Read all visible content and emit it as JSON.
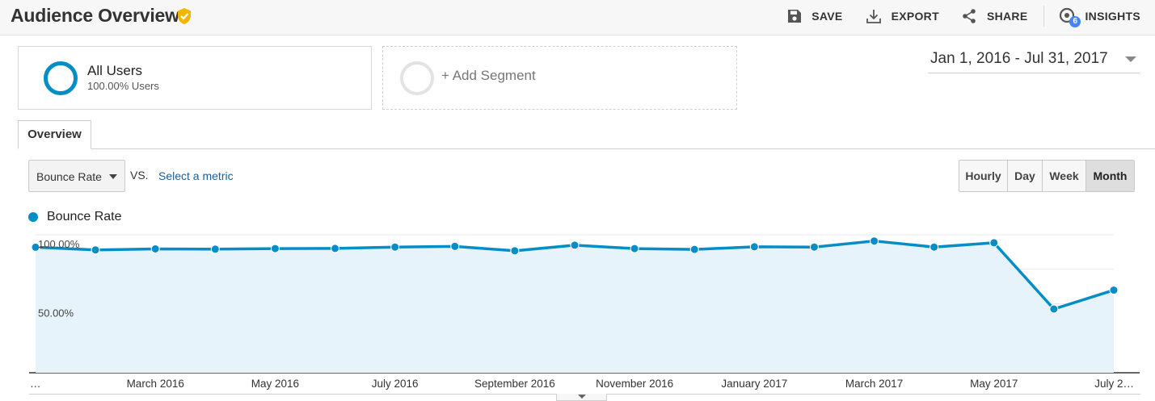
{
  "header": {
    "title": "Audience Overview",
    "actions": {
      "save": "SAVE",
      "export": "EXPORT",
      "share": "SHARE",
      "insights": "INSIGHTS",
      "insights_badge": "6"
    }
  },
  "segments": {
    "all_users": {
      "name": "All Users",
      "subtitle": "100.00% Users"
    },
    "add_segment": "+ Add Segment"
  },
  "date_range": "Jan 1, 2016 - Jul 31, 2017",
  "tabs": {
    "overview": "Overview"
  },
  "controls": {
    "metric": "Bounce Rate",
    "vs": "VS.",
    "select_metric": "Select a metric",
    "granularity": [
      "Hourly",
      "Day",
      "Week",
      "Month"
    ],
    "granularity_selected": "Month"
  },
  "colors": {
    "series": "#058dc7",
    "area_fill": "#e6f3fa",
    "verified": "#f2b600"
  },
  "chart_data": {
    "type": "line",
    "legend": [
      "Bounce Rate"
    ],
    "series": [
      {
        "name": "Bounce Rate",
        "x": [
          "Jan 2016",
          "Feb 2016",
          "Mar 2016",
          "Apr 2016",
          "May 2016",
          "Jun 2016",
          "Jul 2016",
          "Aug 2016",
          "Sep 2016",
          "Oct 2016",
          "Nov 2016",
          "Dec 2016",
          "Jan 2017",
          "Feb 2017",
          "Mar 2017",
          "Apr 2017",
          "May 2017",
          "Jun 2017",
          "Jul 2017"
        ],
        "values": [
          91.0,
          89.0,
          89.8,
          89.6,
          90.0,
          90.1,
          91.1,
          91.6,
          88.4,
          92.5,
          90.0,
          89.4,
          91.3,
          91.1,
          95.5,
          91.1,
          94.2,
          46.2,
          59.9
        ]
      }
    ],
    "y_ticks": [
      "100.00%",
      "50.00%"
    ],
    "x_tick_labels": [
      "…",
      "March 2016",
      "May 2016",
      "July 2016",
      "September 2016",
      "November 2016",
      "January 2017",
      "March 2017",
      "May 2017",
      "July 2…"
    ],
    "ylim": [
      0,
      100
    ],
    "grid": true
  }
}
